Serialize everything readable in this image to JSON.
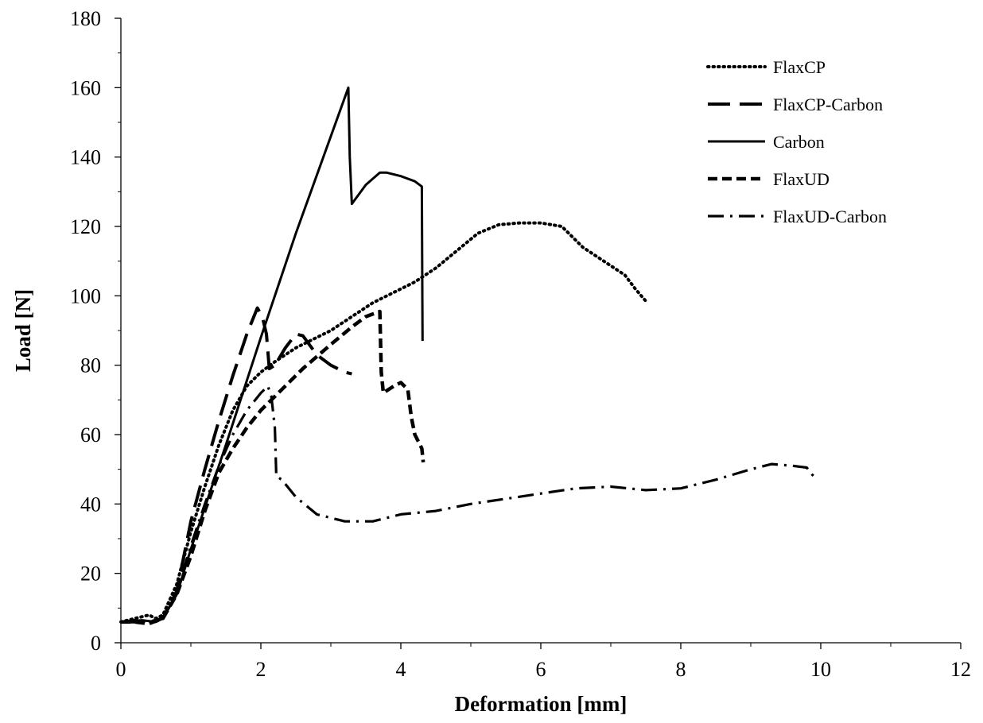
{
  "chart_data": {
    "type": "line",
    "xlabel": "Deformation [mm]",
    "ylabel": "Load [N]",
    "xlim": [
      0,
      12
    ],
    "ylim": [
      0,
      180
    ],
    "xticks": [
      0,
      2,
      4,
      6,
      8,
      10,
      12
    ],
    "yticks": [
      0,
      20,
      40,
      60,
      80,
      100,
      120,
      140,
      160,
      180
    ],
    "grid": false,
    "legend_position": "top-right",
    "series": [
      {
        "name": "FlaxCP",
        "style": "dotted",
        "color": "#000000",
        "x": [
          0,
          0.2,
          0.4,
          0.5,
          0.6,
          0.8,
          1.0,
          1.2,
          1.4,
          1.6,
          1.8,
          2.0,
          2.2,
          2.5,
          2.8,
          3.0,
          3.3,
          3.6,
          3.9,
          4.2,
          4.5,
          4.8,
          5.1,
          5.4,
          5.7,
          6.0,
          6.3,
          6.6,
          6.9,
          7.2,
          7.35,
          7.5
        ],
        "y": [
          6,
          7,
          8,
          7,
          8,
          17,
          32,
          45,
          57,
          67,
          74,
          78,
          81,
          85,
          88,
          90,
          94,
          98,
          101,
          104,
          108,
          113,
          118,
          120.5,
          121,
          121,
          120,
          114,
          110,
          106,
          102,
          98.5
        ]
      },
      {
        "name": "FlaxCP-Carbon",
        "style": "long-dash",
        "color": "#000000",
        "x": [
          0,
          0.2,
          0.4,
          0.6,
          0.8,
          1.0,
          1.2,
          1.4,
          1.6,
          1.8,
          1.95,
          2.02,
          2.08,
          2.12,
          2.2,
          2.35,
          2.5,
          2.6,
          2.8,
          3.0,
          3.2,
          3.3
        ],
        "y": [
          6,
          6,
          6,
          7,
          15,
          35,
          50,
          64,
          77,
          89,
          96.5,
          94,
          89,
          79,
          80,
          85,
          89,
          88.5,
          83,
          80,
          78,
          77.5
        ]
      },
      {
        "name": "Carbon",
        "style": "solid",
        "color": "#000000",
        "x": [
          0,
          0.3,
          0.5,
          0.6,
          0.8,
          1.0,
          1.5,
          2.0,
          2.5,
          3.0,
          3.25,
          3.27,
          3.3,
          3.5,
          3.7,
          3.8,
          4.0,
          4.2,
          4.3,
          4.31
        ],
        "y": [
          6,
          6.5,
          6,
          7,
          14,
          27,
          57,
          88,
          118,
          146,
          160,
          140,
          126.5,
          132,
          135.5,
          135.5,
          134.5,
          133,
          131.5,
          87
        ]
      },
      {
        "name": "FlaxUD",
        "style": "dash",
        "color": "#000000",
        "x": [
          0,
          0.2,
          0.4,
          0.6,
          0.8,
          1.0,
          1.2,
          1.4,
          1.6,
          1.8,
          2.0,
          2.3,
          2.6,
          3.0,
          3.3,
          3.5,
          3.7,
          3.72,
          3.75,
          3.9,
          4.0,
          4.1,
          4.15,
          4.2,
          4.25,
          4.3,
          4.32
        ],
        "y": [
          6,
          6,
          5.5,
          7,
          14,
          25,
          38,
          49,
          56,
          62,
          67,
          73,
          79,
          86,
          91,
          94,
          95.5,
          78,
          72,
          74,
          75,
          73,
          65,
          60,
          58,
          56,
          52
        ]
      },
      {
        "name": "FlaxUD-Carbon",
        "style": "dash-dot",
        "color": "#000000",
        "x": [
          0,
          0.2,
          0.4,
          0.6,
          0.8,
          1.0,
          1.2,
          1.4,
          1.6,
          1.8,
          2.0,
          2.1,
          2.15,
          2.2,
          2.22,
          2.3,
          2.5,
          2.8,
          3.2,
          3.6,
          4.0,
          4.5,
          5.0,
          5.5,
          6.0,
          6.5,
          7.0,
          7.5,
          8.0,
          8.5,
          9.0,
          9.3,
          9.6,
          9.8,
          9.85,
          9.9
        ],
        "y": [
          6,
          6.5,
          6,
          7,
          15,
          28,
          40,
          51,
          60,
          67,
          72,
          74,
          71,
          62,
          48,
          47,
          42,
          37,
          35,
          35,
          37,
          38,
          40,
          41.5,
          43,
          44.5,
          45,
          44,
          44.5,
          47,
          50,
          51.5,
          51,
          50.5,
          49,
          48
        ]
      }
    ]
  }
}
